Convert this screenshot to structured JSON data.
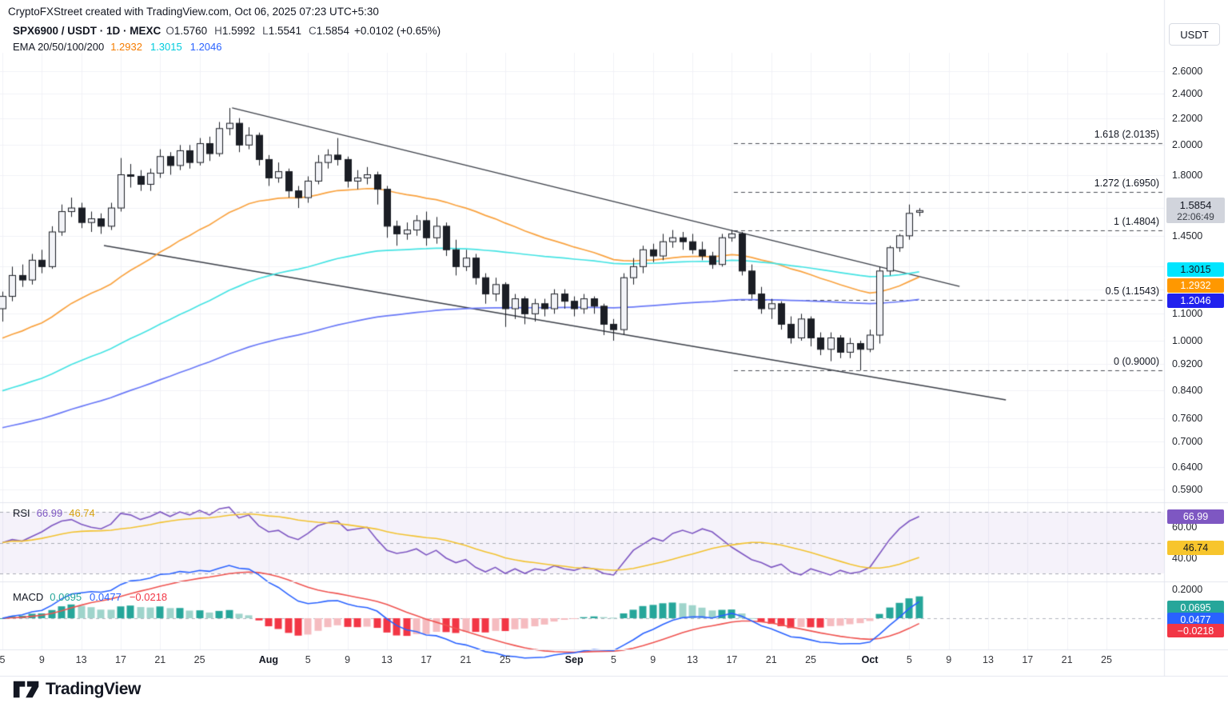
{
  "app": {
    "watermark": "CryptoFXStreet created with TradingView.com, Oct 06, 2025 07:23 UTC+5:30"
  },
  "symbol_header": {
    "title": "SPX6900 / USDT · 1D · MEXC",
    "ohlc": [
      {
        "k": "O",
        "v": "1.5760"
      },
      {
        "k": "H",
        "v": "1.5992"
      },
      {
        "k": "L",
        "v": "1.5541"
      },
      {
        "k": "C",
        "v": "1.5854"
      }
    ],
    "change": "+0.0102 (+0.65%)"
  },
  "ema_legend": {
    "label": "EMA 20/50/100/200",
    "values": [
      {
        "text": "1.2932",
        "color": "#F57C00"
      },
      {
        "text": "1.3015",
        "color": "#00CBDD"
      },
      {
        "text": "1.2046",
        "color": "#2962FF"
      }
    ]
  },
  "price_axis": {
    "currency": "USDT",
    "ticks": [
      {
        "label": "2.6000",
        "price": 2.6
      },
      {
        "label": "2.4000",
        "price": 2.4
      },
      {
        "label": "2.2000",
        "price": 2.2
      },
      {
        "label": "2.0000",
        "price": 2.0
      },
      {
        "label": "1.8000",
        "price": 1.8
      },
      {
        "label": "1.4500",
        "price": 1.45
      },
      {
        "label": "1.1000",
        "price": 1.1
      },
      {
        "label": "1.0000",
        "price": 1.0
      },
      {
        "label": "0.9200",
        "price": 0.92
      },
      {
        "label": "0.8400",
        "price": 0.84
      },
      {
        "label": "0.7600",
        "price": 0.76
      },
      {
        "label": "0.7000",
        "price": 0.7
      },
      {
        "label": "0.6400",
        "price": 0.64
      },
      {
        "label": "0.5900",
        "price": 0.59
      }
    ],
    "grid_extra_prices": [
      1.6,
      1.3,
      1.2
    ],
    "price_badge": {
      "value": "1.5854",
      "countdown": "22:06:49",
      "bg": "#d1d4dc"
    },
    "ema_badges": [
      {
        "text": "1.3015",
        "bg": "#00E5FF",
        "fg": "#131722"
      },
      {
        "text": "1.2932",
        "bg": "#FF9800",
        "fg": "#ffffff"
      },
      {
        "text": "1.2046",
        "bg": "#2121EE",
        "fg": "#ffffff"
      }
    ]
  },
  "fib_levels": [
    {
      "label": "1.618 (2.0135)",
      "price": 2.0135
    },
    {
      "label": "1.272 (1.6950)",
      "price": 1.695
    },
    {
      "label": "1 (1.4804)",
      "price": 1.4804
    },
    {
      "label": "0.5 (1.1543)",
      "price": 1.1543
    },
    {
      "label": "0 (0.9000)",
      "price": 0.9
    }
  ],
  "rsi_panel": {
    "label": "RSI",
    "value_main": {
      "text": "66.99",
      "color": "#7E57C2"
    },
    "value_ma": {
      "text": "46.74",
      "color": "#D9A514"
    },
    "ticks": [
      {
        "label": "60.00",
        "value": 60
      },
      {
        "label": "40.00",
        "value": 40
      }
    ],
    "badges": [
      {
        "text": "66.99",
        "bg": "#7E57C2",
        "fg": "#ffffff",
        "value": 66.99
      },
      {
        "text": "46.74",
        "bg": "#F7C52D",
        "fg": "#131722",
        "value": 46.74
      }
    ],
    "levels": [
      70,
      50,
      30
    ]
  },
  "macd_panel": {
    "label": "MACD",
    "values": [
      {
        "text": "0.0695",
        "color": "#26A69A"
      },
      {
        "text": "0.0477",
        "color": "#2962FF"
      },
      {
        "text": "−0.0218",
        "color": "#F23645"
      }
    ],
    "tick": {
      "label": "0.2000",
      "value": 0.2
    },
    "badges": [
      {
        "text": "0.0695",
        "bg": "#26A69A",
        "fg": "#ffffff"
      },
      {
        "text": "0.0477",
        "bg": "#2962FF",
        "fg": "#ffffff"
      },
      {
        "text": "−0.0218",
        "bg": "#F23645",
        "fg": "#ffffff"
      }
    ]
  },
  "time_axis": {
    "labels": [
      {
        "text": "5",
        "bar": 0,
        "bold": false
      },
      {
        "text": "9",
        "bar": 4,
        "bold": false
      },
      {
        "text": "13",
        "bar": 8,
        "bold": false
      },
      {
        "text": "17",
        "bar": 12,
        "bold": false
      },
      {
        "text": "21",
        "bar": 16,
        "bold": false
      },
      {
        "text": "25",
        "bar": 20,
        "bold": false
      },
      {
        "text": "Aug",
        "bar": 27,
        "bold": true
      },
      {
        "text": "5",
        "bar": 31,
        "bold": false
      },
      {
        "text": "9",
        "bar": 35,
        "bold": false
      },
      {
        "text": "13",
        "bar": 39,
        "bold": false
      },
      {
        "text": "17",
        "bar": 43,
        "bold": false
      },
      {
        "text": "21",
        "bar": 47,
        "bold": false
      },
      {
        "text": "25",
        "bar": 51,
        "bold": false
      },
      {
        "text": "Sep",
        "bar": 58,
        "bold": true
      },
      {
        "text": "5",
        "bar": 62,
        "bold": false
      },
      {
        "text": "9",
        "bar": 66,
        "bold": false
      },
      {
        "text": "13",
        "bar": 70,
        "bold": false
      },
      {
        "text": "17",
        "bar": 74,
        "bold": false
      },
      {
        "text": "21",
        "bar": 78,
        "bold": false
      },
      {
        "text": "25",
        "bar": 82,
        "bold": false
      },
      {
        "text": "Oct",
        "bar": 88,
        "bold": true
      },
      {
        "text": "5",
        "bar": 92,
        "bold": false
      },
      {
        "text": "9",
        "bar": 96,
        "bold": false
      },
      {
        "text": "13",
        "bar": 100,
        "bold": false
      },
      {
        "text": "17",
        "bar": 104,
        "bold": false
      },
      {
        "text": "21",
        "bar": 108,
        "bold": false
      },
      {
        "text": "25",
        "bar": 112,
        "bold": false
      }
    ]
  },
  "branding": {
    "name": "TradingView"
  },
  "chart_data": {
    "type": "candlestick",
    "symbol": "SPX6900/USDT",
    "exchange": "MEXC",
    "interval": "1D",
    "start_date": "2025-07-05",
    "last_price": 1.5854,
    "scale": "log",
    "candles": [
      [
        1.12,
        1.19,
        1.07,
        1.17
      ],
      [
        1.17,
        1.3,
        1.15,
        1.26
      ],
      [
        1.26,
        1.31,
        1.21,
        1.24
      ],
      [
        1.24,
        1.36,
        1.22,
        1.33
      ],
      [
        1.33,
        1.38,
        1.27,
        1.3
      ],
      [
        1.3,
        1.5,
        1.29,
        1.47
      ],
      [
        1.47,
        1.62,
        1.45,
        1.58
      ],
      [
        1.58,
        1.66,
        1.55,
        1.6
      ],
      [
        1.6,
        1.63,
        1.49,
        1.52
      ],
      [
        1.52,
        1.58,
        1.47,
        1.54
      ],
      [
        1.54,
        1.57,
        1.46,
        1.5
      ],
      [
        1.5,
        1.63,
        1.48,
        1.6
      ],
      [
        1.6,
        1.91,
        1.58,
        1.8
      ],
      [
        1.8,
        1.87,
        1.72,
        1.79
      ],
      [
        1.79,
        1.83,
        1.7,
        1.74
      ],
      [
        1.74,
        1.84,
        1.7,
        1.81
      ],
      [
        1.81,
        1.97,
        1.78,
        1.92
      ],
      [
        1.92,
        1.95,
        1.8,
        1.86
      ],
      [
        1.86,
        2.0,
        1.83,
        1.96
      ],
      [
        1.96,
        2.0,
        1.84,
        1.88
      ],
      [
        1.88,
        2.05,
        1.86,
        2.01
      ],
      [
        2.01,
        2.06,
        1.89,
        1.94
      ],
      [
        1.94,
        2.17,
        1.92,
        2.12
      ],
      [
        2.12,
        2.28,
        2.07,
        2.16
      ],
      [
        2.16,
        2.2,
        1.95,
        2.0
      ],
      [
        2.0,
        2.13,
        1.97,
        2.07
      ],
      [
        2.07,
        2.09,
        1.86,
        1.9
      ],
      [
        1.9,
        1.93,
        1.73,
        1.78
      ],
      [
        1.78,
        1.88,
        1.75,
        1.82
      ],
      [
        1.82,
        1.84,
        1.66,
        1.7
      ],
      [
        1.7,
        1.73,
        1.6,
        1.66
      ],
      [
        1.66,
        1.79,
        1.63,
        1.76
      ],
      [
        1.76,
        1.93,
        1.74,
        1.88
      ],
      [
        1.88,
        1.97,
        1.84,
        1.93
      ],
      [
        1.93,
        2.05,
        1.86,
        1.9
      ],
      [
        1.9,
        1.92,
        1.72,
        1.76
      ],
      [
        1.76,
        1.83,
        1.71,
        1.78
      ],
      [
        1.78,
        1.85,
        1.74,
        1.8
      ],
      [
        1.8,
        1.82,
        1.62,
        1.71
      ],
      [
        1.71,
        1.73,
        1.44,
        1.5
      ],
      [
        1.5,
        1.53,
        1.4,
        1.46
      ],
      [
        1.46,
        1.52,
        1.43,
        1.48
      ],
      [
        1.48,
        1.56,
        1.45,
        1.53
      ],
      [
        1.53,
        1.58,
        1.4,
        1.44
      ],
      [
        1.44,
        1.55,
        1.41,
        1.5
      ],
      [
        1.5,
        1.52,
        1.35,
        1.38
      ],
      [
        1.38,
        1.43,
        1.26,
        1.3
      ],
      [
        1.3,
        1.38,
        1.28,
        1.34
      ],
      [
        1.34,
        1.36,
        1.22,
        1.25
      ],
      [
        1.25,
        1.27,
        1.14,
        1.18
      ],
      [
        1.18,
        1.25,
        1.15,
        1.22
      ],
      [
        1.22,
        1.23,
        1.05,
        1.12
      ],
      [
        1.12,
        1.18,
        1.08,
        1.16
      ],
      [
        1.16,
        1.17,
        1.06,
        1.1
      ],
      [
        1.1,
        1.16,
        1.07,
        1.14
      ],
      [
        1.14,
        1.16,
        1.09,
        1.12
      ],
      [
        1.12,
        1.2,
        1.1,
        1.18
      ],
      [
        1.18,
        1.2,
        1.12,
        1.15
      ],
      [
        1.15,
        1.17,
        1.09,
        1.12
      ],
      [
        1.12,
        1.18,
        1.1,
        1.16
      ],
      [
        1.16,
        1.17,
        1.1,
        1.13
      ],
      [
        1.13,
        1.14,
        1.02,
        1.06
      ],
      [
        1.06,
        1.08,
        1.0,
        1.04
      ],
      [
        1.04,
        1.27,
        1.02,
        1.25
      ],
      [
        1.25,
        1.34,
        1.22,
        1.3
      ],
      [
        1.3,
        1.4,
        1.27,
        1.38
      ],
      [
        1.38,
        1.41,
        1.32,
        1.35
      ],
      [
        1.35,
        1.46,
        1.33,
        1.42
      ],
      [
        1.42,
        1.48,
        1.39,
        1.44
      ],
      [
        1.44,
        1.47,
        1.38,
        1.42
      ],
      [
        1.42,
        1.46,
        1.36,
        1.38
      ],
      [
        1.38,
        1.42,
        1.33,
        1.35
      ],
      [
        1.35,
        1.37,
        1.29,
        1.31
      ],
      [
        1.31,
        1.46,
        1.3,
        1.44
      ],
      [
        1.44,
        1.48,
        1.42,
        1.46
      ],
      [
        1.46,
        1.47,
        1.26,
        1.28
      ],
      [
        1.28,
        1.31,
        1.16,
        1.18
      ],
      [
        1.18,
        1.21,
        1.1,
        1.12
      ],
      [
        1.12,
        1.16,
        1.08,
        1.14
      ],
      [
        1.14,
        1.15,
        1.04,
        1.06
      ],
      [
        1.06,
        1.09,
        0.99,
        1.01
      ],
      [
        1.01,
        1.1,
        1.0,
        1.08
      ],
      [
        1.08,
        1.09,
        0.98,
        1.01
      ],
      [
        1.01,
        1.03,
        0.95,
        0.97
      ],
      [
        0.97,
        1.03,
        0.93,
        1.01
      ],
      [
        1.01,
        1.02,
        0.94,
        0.96
      ],
      [
        0.96,
        1.01,
        0.94,
        0.99
      ],
      [
        0.99,
        1.0,
        0.9,
        0.97
      ],
      [
        0.97,
        1.04,
        0.96,
        1.02
      ],
      [
        1.02,
        1.3,
        0.99,
        1.28
      ],
      [
        1.28,
        1.4,
        1.26,
        1.39
      ],
      [
        1.39,
        1.46,
        1.37,
        1.45
      ],
      [
        1.45,
        1.62,
        1.43,
        1.57
      ],
      [
        1.576,
        1.5992,
        1.5541,
        1.5854
      ]
    ],
    "candle_colors": {
      "up_fill": "#F2F3F7",
      "up_border": "#1B1E25",
      "down_fill": "#1B1E25",
      "wick": "#1B1E25"
    },
    "emas": [
      {
        "label": "EMA fast",
        "color": "#F9A23F",
        "alpha": 0.055,
        "seed": 1.0
      },
      {
        "label": "EMA mid",
        "color": "#45E3E3",
        "alpha": 0.022,
        "seed": 0.83
      },
      {
        "label": "EMA slow",
        "color": "#6A79F7",
        "alpha": 0.011,
        "seed": 0.73
      }
    ],
    "rsi": [
      50,
      52,
      51,
      54,
      57,
      61,
      64,
      65,
      62,
      60,
      59,
      62,
      69,
      68,
      65,
      67,
      70,
      67,
      70,
      68,
      71,
      68,
      72,
      73,
      66,
      68,
      61,
      57,
      58,
      54,
      52,
      56,
      61,
      63,
      64,
      58,
      59,
      60,
      52,
      45,
      43,
      44,
      46,
      42,
      45,
      40,
      37,
      39,
      34,
      31,
      34,
      30,
      33,
      30,
      33,
      32,
      35,
      33,
      32,
      34,
      33,
      30,
      29,
      37,
      45,
      49,
      53,
      51,
      56,
      58,
      56,
      59,
      57,
      52,
      47,
      43,
      39,
      37,
      34,
      36,
      31,
      29,
      33,
      31,
      29,
      32,
      30,
      31,
      34,
      43,
      52,
      59,
      64,
      67
    ],
    "rsi_colors": {
      "line": "#7E57C2",
      "ma": "#F2C230",
      "band_fill": "rgba(126,87,194,0.08)"
    },
    "macd": {
      "fast_alpha": 0.22,
      "slow_alpha": 0.06,
      "signal_alpha": 0.18,
      "line_color": "#2962FF",
      "signal_color": "#EF5350",
      "hist_colors": [
        "#26A69A",
        "#9FD4CB",
        "#F23645",
        "#F5BCC0"
      ]
    },
    "trendlines": [
      {
        "name": "wedge-upper",
        "b1": 23.3,
        "p1": 2.281,
        "b2": 97.1,
        "p2": 1.212
      },
      {
        "name": "wedge-lower",
        "b1": 10.3,
        "p1": 1.401,
        "b2": 101.8,
        "p2": 0.811
      }
    ],
    "fib_start_bar": 74.2
  }
}
